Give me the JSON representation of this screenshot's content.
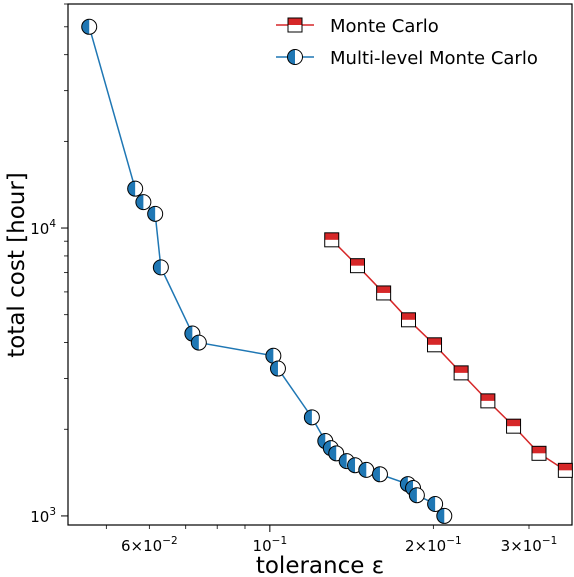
{
  "chart_data": {
    "type": "line",
    "title": "",
    "xlabel": "tolerance ε",
    "ylabel": "total cost [hour]",
    "xscale": "log",
    "yscale": "log",
    "xlim": [
      0.0425,
      0.36
    ],
    "ylim": [
      930,
      60000
    ],
    "grid": false,
    "legend_position": "top-right",
    "x_ticks": [
      {
        "value": 0.06,
        "mantissa": "6",
        "base": "×10",
        "exp": "−2"
      },
      {
        "value": 0.1,
        "mantissa": "",
        "base": "10",
        "exp": "−1"
      },
      {
        "value": 0.2,
        "mantissa": "2",
        "base": "×10",
        "exp": "−1"
      },
      {
        "value": 0.3,
        "mantissa": "3",
        "base": "×10",
        "exp": "−1"
      }
    ],
    "y_ticks": [
      {
        "value": 1000,
        "base": "10",
        "exp": "3"
      },
      {
        "value": 10000,
        "base": "10",
        "exp": "4"
      }
    ],
    "series": [
      {
        "name": "Monte Carlo",
        "color": "#d62728",
        "line_color": "#d62728",
        "marker": "square-top-filled",
        "x": [
          0.13,
          0.145,
          0.162,
          0.18,
          0.201,
          0.225,
          0.252,
          0.281,
          0.313,
          0.35
        ],
        "y": [
          9100,
          7400,
          5950,
          4800,
          3930,
          3140,
          2510,
          2050,
          1650,
          1440
        ]
      },
      {
        "name": "Multi-level Monte Carlo",
        "color": "#1f77b4",
        "line_color": "#1f77b4",
        "marker": "circle-left-filled",
        "x": [
          0.0465,
          0.0565,
          0.0585,
          0.0615,
          0.063,
          0.072,
          0.074,
          0.1015,
          0.1035,
          0.1195,
          0.1265,
          0.1295,
          0.1325,
          0.1385,
          0.1435,
          0.1505,
          0.1595,
          0.1795,
          0.1835,
          0.1865,
          0.2015,
          0.2095
        ],
        "y": [
          50000,
          13700,
          12300,
          11200,
          7300,
          4300,
          4000,
          3600,
          3250,
          2200,
          1820,
          1720,
          1650,
          1550,
          1500,
          1445,
          1395,
          1290,
          1250,
          1180,
          1100,
          1000
        ]
      }
    ]
  }
}
